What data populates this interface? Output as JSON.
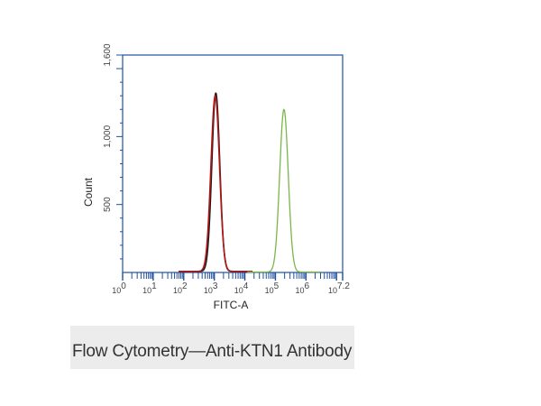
{
  "caption": "Flow Cytometry—Anti-KTN1 Antibody",
  "chart_data": {
    "type": "line",
    "xlabel": "FITC-A",
    "ylabel": "Count",
    "x_scale": "log10",
    "xlim_exponent": [
      0,
      7.2
    ],
    "ylim": [
      0,
      1600
    ],
    "x_ticks": [
      {
        "base": "10",
        "exp": "0",
        "value": 0
      },
      {
        "base": "10",
        "exp": "1",
        "value": 1
      },
      {
        "base": "10",
        "exp": "2",
        "value": 2
      },
      {
        "base": "10",
        "exp": "3",
        "value": 3
      },
      {
        "base": "10",
        "exp": "4",
        "value": 4
      },
      {
        "base": "10",
        "exp": "5",
        "value": 5
      },
      {
        "base": "10",
        "exp": "6",
        "value": 6
      },
      {
        "base": "10",
        "exp": "7.2",
        "value": 7.2
      }
    ],
    "y_ticks": [
      {
        "label": "500",
        "value": 500
      },
      {
        "label": "1,000",
        "value": 1000
      },
      {
        "label": "1,600",
        "value": 1600
      }
    ],
    "series": [
      {
        "color": "#1a1a1a",
        "peak_log": 3.05,
        "peak_count": 1320,
        "width_log": 0.13,
        "base_count": 8
      },
      {
        "color": "#b01818",
        "peak_log": 3.03,
        "peak_count": 1300,
        "width_log": 0.14,
        "base_count": 8
      },
      {
        "color": "#7ab648",
        "peak_log": 5.28,
        "peak_count": 1200,
        "width_log": 0.14,
        "base_count": 3
      }
    ],
    "axis_color": "#1f4fa0",
    "grid": false
  }
}
